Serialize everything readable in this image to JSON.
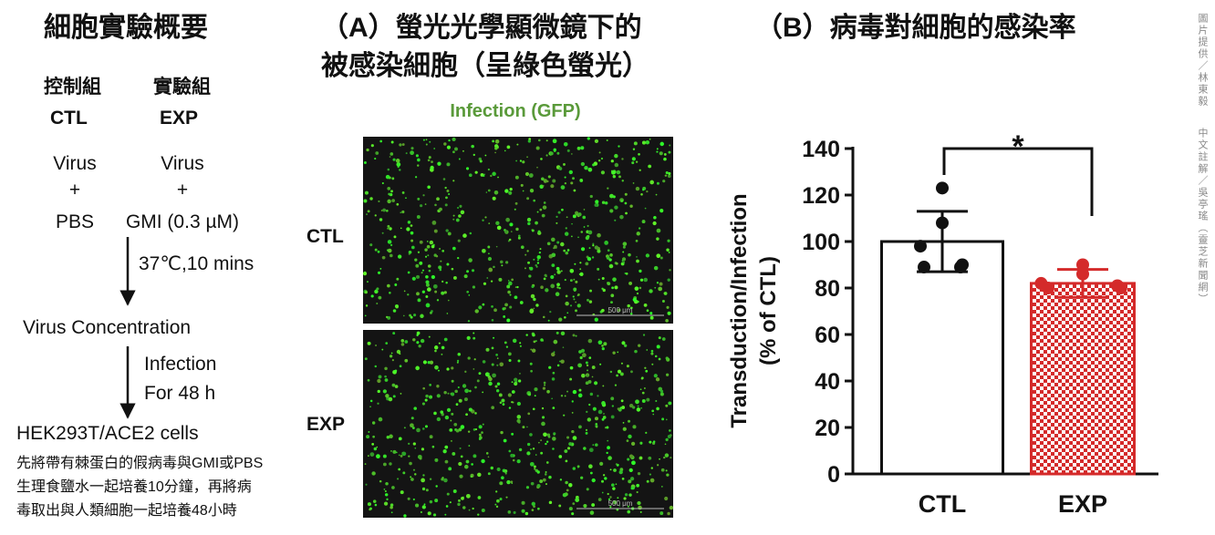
{
  "overview": {
    "title": "細胞實驗概要",
    "groups": [
      "控制組",
      "實驗組"
    ],
    "codes": [
      "CTL",
      "EXP"
    ],
    "virus": [
      "Virus",
      "Virus"
    ],
    "plus": [
      "+",
      "+"
    ],
    "treatments": [
      "PBS",
      "GMI (0.3 µM)"
    ],
    "step1": "37℃,10 mins",
    "stage1": "Virus Concentration",
    "step2": [
      "Infection",
      "For 48 h"
    ],
    "stage2": "HEK293T/ACE2 cells",
    "note": [
      "先將帶有棘蛋白的假病毒與GMI或PBS",
      "生理食鹽水一起培養10分鐘，再將病",
      "毒取出與人類細胞一起培養48小時"
    ]
  },
  "microscopy": {
    "title": [
      "（A）螢光光學顯微鏡下的",
      "被感染細胞（呈綠色螢光）"
    ],
    "subtitle": "Infection (GFP)",
    "rows": [
      "CTL",
      "EXP"
    ],
    "scale_bar": [
      "500 μm",
      "500 μm"
    ]
  },
  "chart_data": {
    "type": "bar",
    "title": "（B）病毒對細胞的感染率",
    "ylabel": [
      "Transduction/Infection",
      "(% of CTL)"
    ],
    "categories": [
      "CTL",
      "EXP"
    ],
    "values": [
      100,
      82
    ],
    "errors": [
      13,
      6
    ],
    "points": [
      [
        123,
        108,
        98,
        90,
        89,
        89
      ],
      [
        90,
        86,
        82,
        80,
        80,
        81
      ]
    ],
    "colors": [
      "#ffffff",
      "#d42a2a"
    ],
    "hatch": [
      false,
      true
    ],
    "ylim": [
      0,
      140
    ],
    "yticks": [
      0,
      20,
      40,
      60,
      80,
      100,
      120,
      140
    ],
    "annotation": "*"
  },
  "credits": [
    "圖片提供／林東毅",
    "中文註解／吳亭瑤（靈芝新聞網）"
  ]
}
